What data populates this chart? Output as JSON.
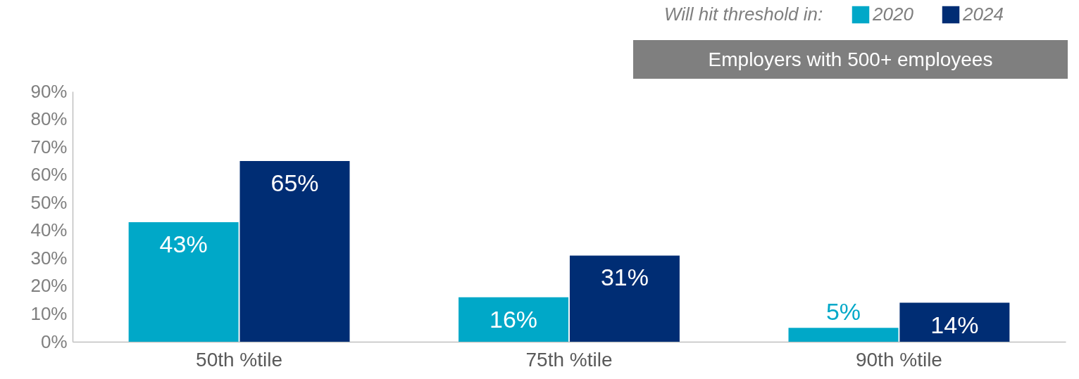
{
  "chart_data": {
    "type": "bar",
    "subtitle": "Employers with 500+ employees",
    "legend_title": "Will hit threshold in:",
    "legend": "top right",
    "categories": [
      "50th %tile",
      "75th %tile",
      "90th %tile"
    ],
    "series": [
      {
        "name": "2020",
        "color": "#00a8c8",
        "values": [
          43,
          16,
          5
        ],
        "value_labels": [
          "43%",
          "16%",
          "5%"
        ]
      },
      {
        "name": "2024",
        "color": "#002d74",
        "values": [
          65,
          31,
          14
        ],
        "value_labels": [
          "65%",
          "31%",
          "14%"
        ]
      }
    ],
    "ylim": [
      0,
      90
    ],
    "yticks": [
      {
        "value": 0,
        "label": "0%"
      },
      {
        "value": 10,
        "label": "10%"
      },
      {
        "value": 20,
        "label": "20%"
      },
      {
        "value": 30,
        "label": "30%"
      },
      {
        "value": 40,
        "label": "40%"
      },
      {
        "value": 50,
        "label": "50%"
      },
      {
        "value": 60,
        "label": "60%"
      },
      {
        "value": 70,
        "label": "70%"
      },
      {
        "value": 80,
        "label": "80%"
      },
      {
        "value": 90,
        "label": "90%"
      }
    ],
    "grid": false
  }
}
